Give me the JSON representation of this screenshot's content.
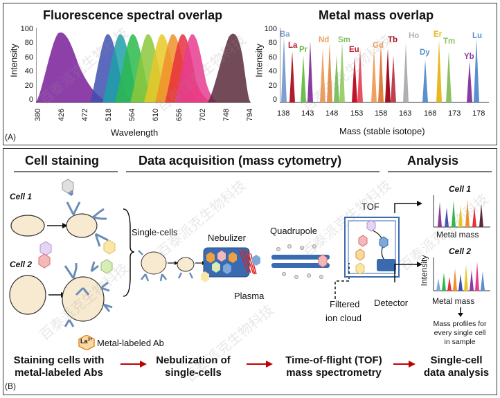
{
  "panel_a": {
    "label": "(A)",
    "left_chart": {
      "title": "Fluorescence spectral overlap",
      "ylabel": "Intensity",
      "xlabel": "Wavelength",
      "y_ticks": [
        "100",
        "80",
        "60",
        "40",
        "20",
        "0"
      ],
      "x_ticks": [
        "380",
        "426",
        "472",
        "518",
        "564",
        "610",
        "656",
        "702",
        "748",
        "794"
      ]
    },
    "right_chart": {
      "title": "Metal mass overlap",
      "ylabel": "Intensity",
      "xlabel": "Mass (stable isotope)",
      "y_ticks": [
        "100",
        "80",
        "60",
        "40",
        "20",
        "0"
      ],
      "x_ticks": [
        "138",
        "143",
        "148",
        "153",
        "158",
        "163",
        "168",
        "173",
        "178"
      ],
      "elements": [
        {
          "name": "Ba",
          "color": "#7f9fd0"
        },
        {
          "name": "La",
          "color": "#b01c2c"
        },
        {
          "name": "Pr",
          "color": "#6cbf4a"
        },
        {
          "name": "Nd",
          "color": "#f0a060"
        },
        {
          "name": "Sm",
          "color": "#7fc060"
        },
        {
          "name": "Eu",
          "color": "#c0142c"
        },
        {
          "name": "Gd",
          "color": "#f0a060"
        },
        {
          "name": "Tb",
          "color": "#a01020"
        },
        {
          "name": "Ho",
          "color": "#b0b0b0"
        },
        {
          "name": "Dy",
          "color": "#5b8fd0"
        },
        {
          "name": "Er",
          "color": "#e8b820"
        },
        {
          "name": "Tm",
          "color": "#8cc060"
        },
        {
          "name": "Yb",
          "color": "#8a3aa0"
        },
        {
          "name": "Lu",
          "color": "#5b8fd0"
        }
      ]
    }
  },
  "panel_b": {
    "label": "(B)",
    "headers": {
      "staining": "Cell staining",
      "acquisition": "Data acquisition (mass cytometry)",
      "analysis": "Analysis"
    },
    "cell1": "Cell 1",
    "cell2": "Cell 2",
    "ion": "La",
    "ion_charge": "3+",
    "legend": "Metal-labeled Ab",
    "single_cells": "Single-cells",
    "nebulizer": "Nebulizer",
    "plasma": "Plasma",
    "quadrupole": "Quadrupole",
    "tof": "TOF",
    "filtered": "Filtered",
    "ion_cloud": "ion cloud",
    "detector": "Detector",
    "analysis_cell1": "Cell 1",
    "analysis_cell2": "Cell 2",
    "intensity": "Intensity",
    "metal_mass": "Metal mass",
    "mass_profiles": [
      "Mass profiles for",
      "every single cell",
      "in sample"
    ],
    "steps": [
      [
        "Staining cells with",
        "metal-labeled Abs"
      ],
      [
        "Nebulization of",
        "single-cells"
      ],
      [
        "Time-of-flight (TOF)",
        "mass spectrometry"
      ],
      [
        "Single-cell",
        "data analysis"
      ]
    ]
  },
  "colors": {
    "ab_blue": "#6a8cb8",
    "arrow_red": "#c00000",
    "ion_red": "#e07070",
    "ion_orange": "#f0a040",
    "ion_purple": "#c8a0e0",
    "ion_green": "#a8d080",
    "ion_blue": "#7fa8d8"
  },
  "watermark": "百泰派克生物科技"
}
